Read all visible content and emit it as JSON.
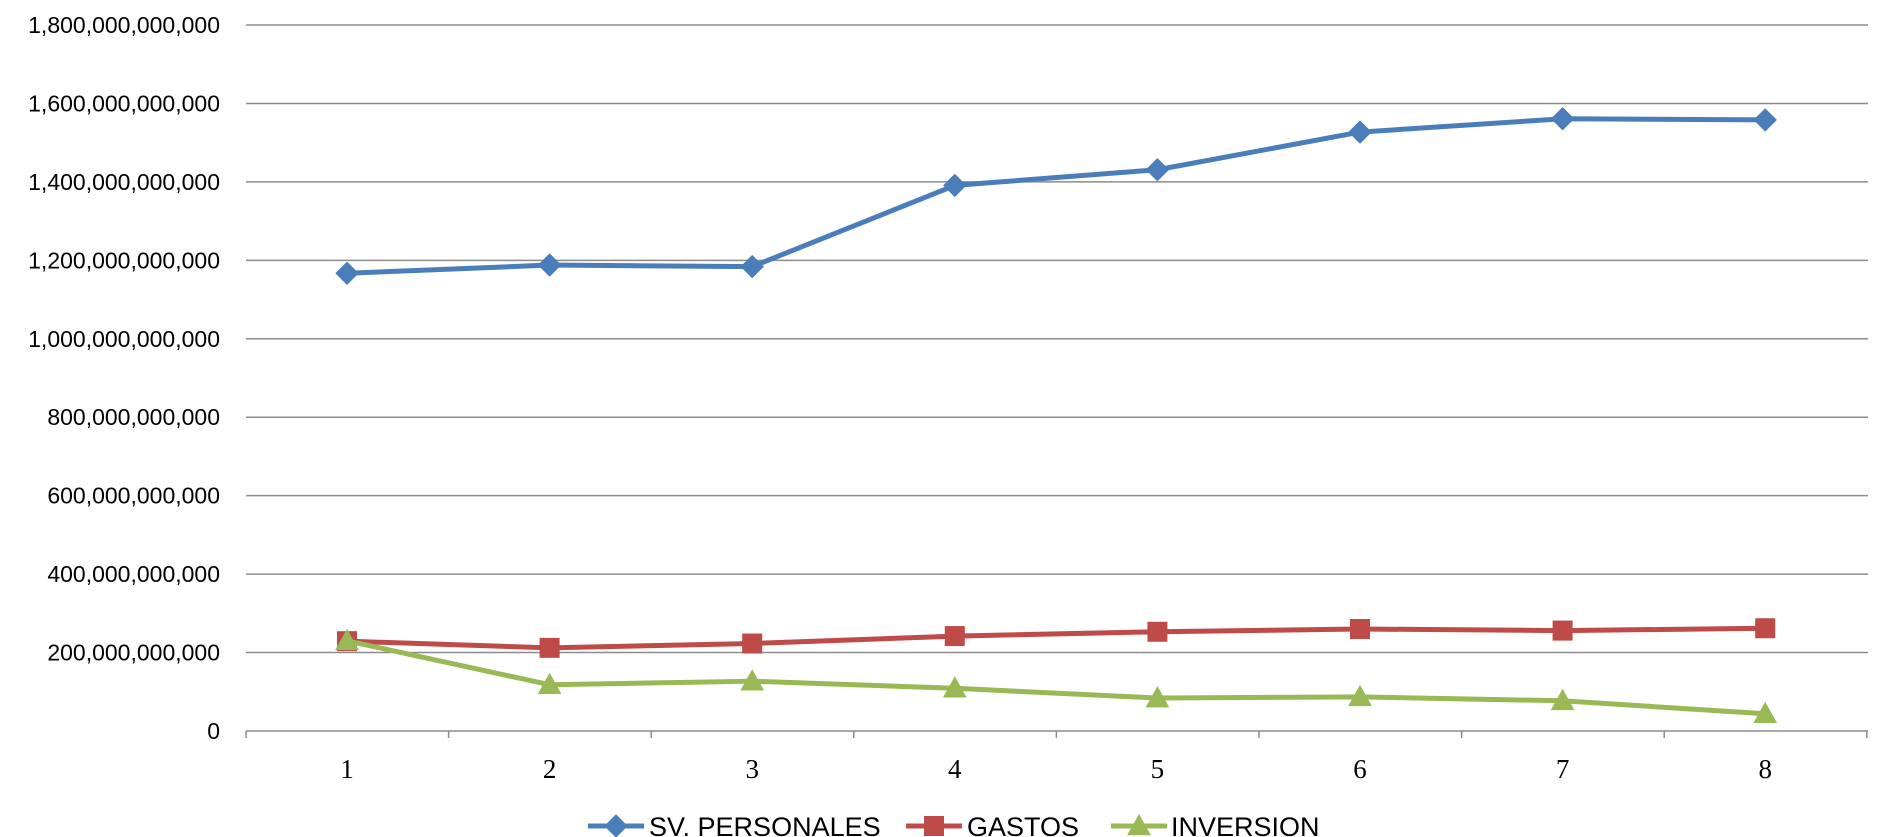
{
  "chart_data": {
    "type": "line",
    "title": "",
    "xlabel": "",
    "ylabel": "",
    "x": [
      1,
      2,
      3,
      4,
      5,
      6,
      7,
      8
    ],
    "ylim": [
      0,
      1800000000000
    ],
    "y_ticks": [
      0,
      200000000000,
      400000000000,
      600000000000,
      800000000000,
      1000000000000,
      1200000000000,
      1400000000000,
      1600000000000,
      1800000000000
    ],
    "y_tick_labels": [
      "0",
      "200,000,000,000",
      "400,000,000,000",
      "600,000,000,000",
      "800,000,000,000",
      "1,000,000,000,000",
      "1,200,000,000,000",
      "1,400,000,000,000",
      "1,600,000,000,000",
      "1,800,000,000,000"
    ],
    "x_tick_labels": [
      "1",
      "2",
      "3",
      "4",
      "5",
      "6",
      "7",
      "8"
    ],
    "grid": "horizontal",
    "legend_position": "bottom",
    "series": [
      {
        "name": "SV. PERSONALES",
        "color": "#4a7ebb",
        "marker": "diamond",
        "values": [
          1167000000000,
          1188000000000,
          1184000000000,
          1391000000000,
          1431000000000,
          1527000000000,
          1561000000000,
          1558000000000
        ]
      },
      {
        "name": "GASTOS",
        "color": "#be4b48",
        "marker": "square",
        "values": [
          229000000000,
          212000000000,
          223000000000,
          242000000000,
          253000000000,
          260000000000,
          256000000000,
          262000000000
        ]
      },
      {
        "name": "INVERSION",
        "color": "#98b954",
        "marker": "triangle",
        "values": [
          230000000000,
          118000000000,
          127000000000,
          109000000000,
          84000000000,
          87000000000,
          77000000000,
          44000000000
        ]
      }
    ]
  }
}
